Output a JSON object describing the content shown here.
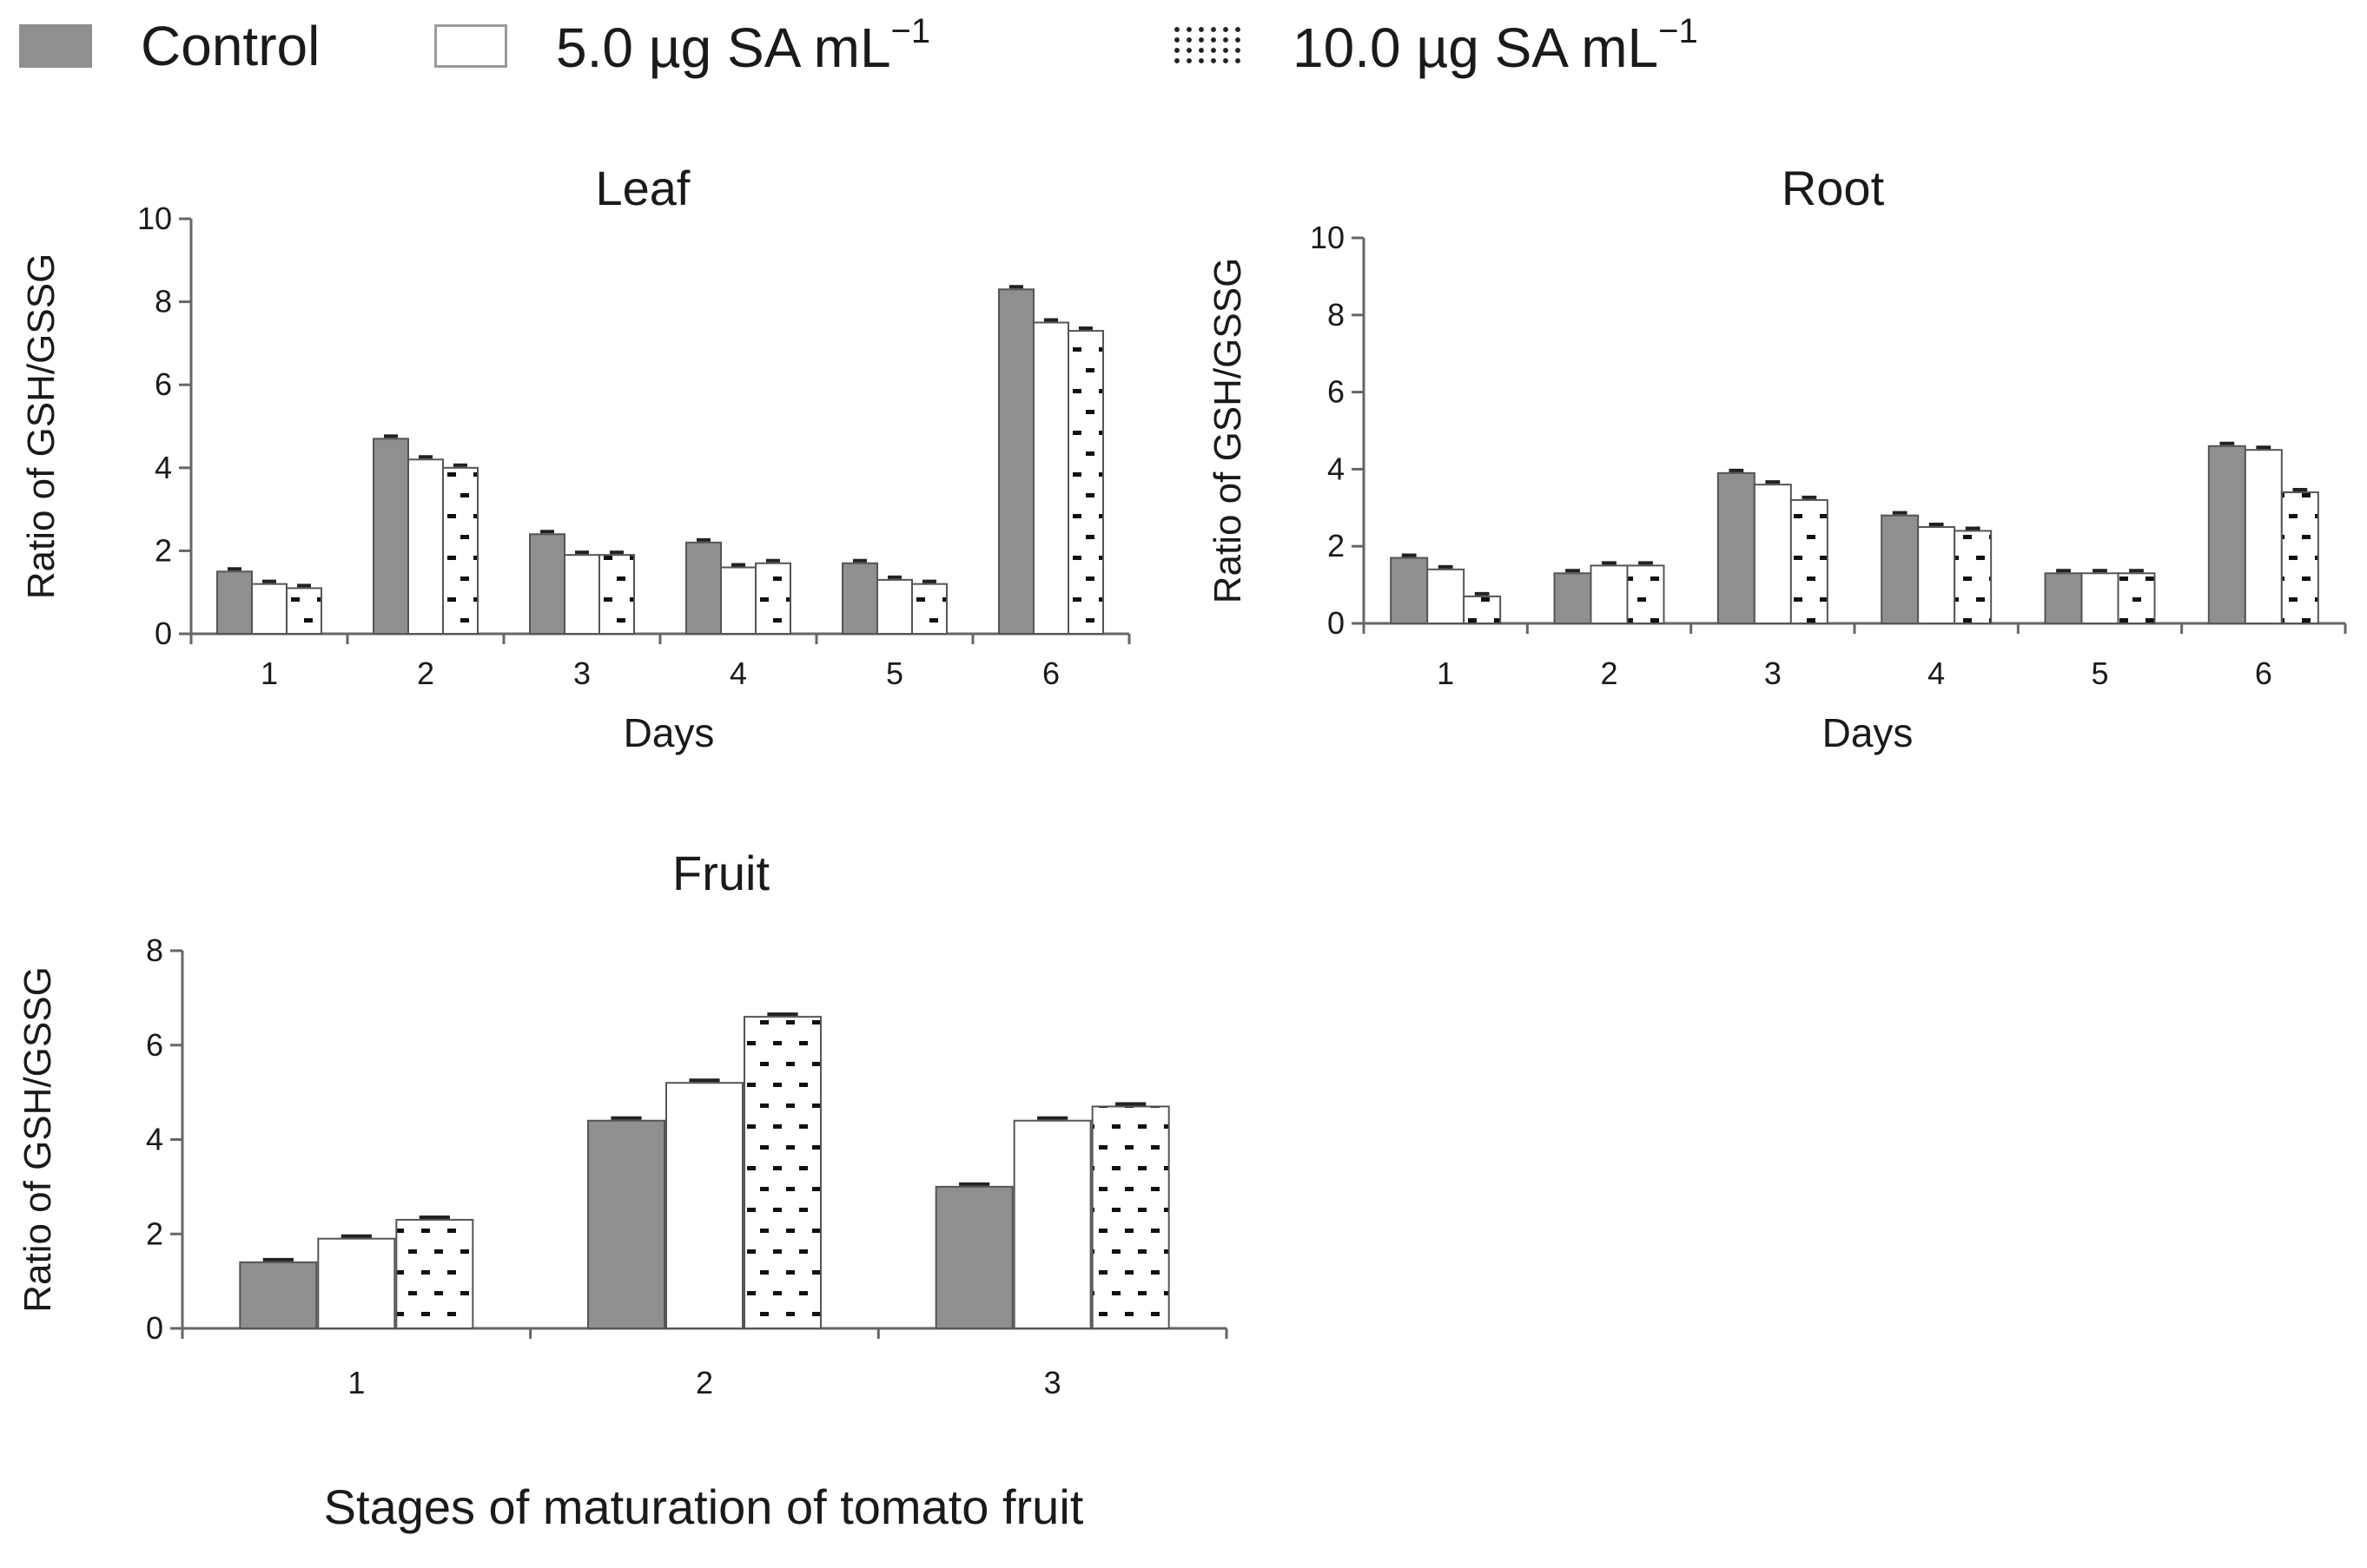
{
  "legend": {
    "items": [
      {
        "key": "control",
        "label": "Control",
        "unit": ""
      },
      {
        "key": "sa5",
        "label": "5.0 µg SA mL",
        "unit": "−1"
      },
      {
        "key": "sa10",
        "label": "10.0 µg SA mL",
        "unit": "−1"
      }
    ]
  },
  "colors": {
    "control": "#8f8f8f",
    "white_bar": "#ffffff",
    "bar_outline": "#555555",
    "axis": "#666666",
    "pattern_dash": "#111111",
    "text": "#1a1a1a"
  },
  "chart_data": [
    {
      "id": "leaf",
      "type": "bar",
      "title": "Leaf",
      "xlabel": "Days",
      "ylabel": "Ratio of GSH/GSSG",
      "categories": [
        "1",
        "2",
        "3",
        "4",
        "5",
        "6"
      ],
      "ylim": [
        0,
        10
      ],
      "yticks": [
        "0",
        "2",
        "4",
        "6",
        "8",
        "10"
      ],
      "grid": false,
      "legend": "top",
      "series": [
        {
          "name": "Control",
          "values": [
            1.5,
            4.7,
            2.4,
            2.2,
            1.7,
            8.3
          ]
        },
        {
          "name": "5.0 µg SA mL−1",
          "values": [
            1.2,
            4.2,
            1.9,
            1.6,
            1.3,
            7.5
          ]
        },
        {
          "name": "10.0 µg SA mL−1",
          "values": [
            1.1,
            4.0,
            1.9,
            1.7,
            1.2,
            7.3
          ]
        }
      ]
    },
    {
      "id": "root",
      "type": "bar",
      "title": "Root",
      "xlabel": "Days",
      "ylabel": "Ratio of GSH/GSSG",
      "categories": [
        "1",
        "2",
        "3",
        "4",
        "5",
        "6"
      ],
      "ylim": [
        0,
        10
      ],
      "yticks": [
        "0",
        "2",
        "4",
        "6",
        "8",
        "10"
      ],
      "grid": false,
      "legend": "top",
      "series": [
        {
          "name": "Control",
          "values": [
            1.7,
            1.3,
            3.9,
            2.8,
            1.3,
            4.6
          ]
        },
        {
          "name": "5.0 µg SA mL−1",
          "values": [
            1.4,
            1.5,
            3.6,
            2.5,
            1.3,
            4.5
          ]
        },
        {
          "name": "10.0 µg SA mL−1",
          "values": [
            0.7,
            1.5,
            3.2,
            2.4,
            1.3,
            3.4
          ]
        }
      ]
    },
    {
      "id": "fruit",
      "type": "bar",
      "title": "Fruit",
      "xlabel": "Stages of maturation of tomato fruit",
      "ylabel": "Ratio of GSH/GSSG",
      "categories": [
        "1",
        "2",
        "3"
      ],
      "ylim": [
        0,
        8
      ],
      "yticks": [
        "0",
        "2",
        "4",
        "6",
        "8"
      ],
      "grid": false,
      "legend": "top",
      "series": [
        {
          "name": "Control",
          "values": [
            1.4,
            4.4,
            3.0
          ]
        },
        {
          "name": "5.0 µg SA mL−1",
          "values": [
            1.9,
            5.2,
            4.4
          ]
        },
        {
          "name": "10.0 µg SA mL−1",
          "values": [
            2.3,
            6.6,
            4.7
          ]
        }
      ]
    }
  ]
}
